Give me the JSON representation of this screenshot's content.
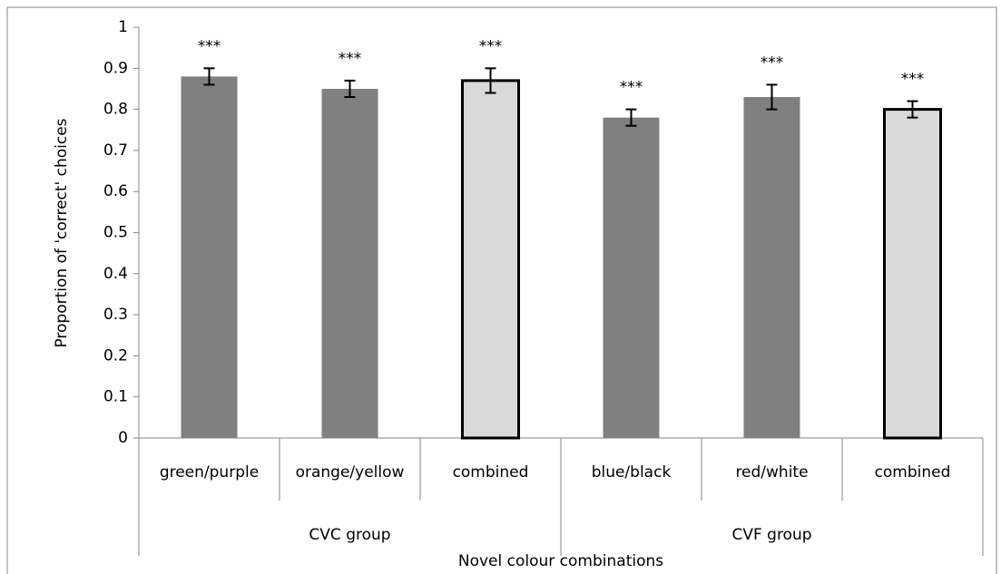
{
  "chart_data": {
    "type": "bar",
    "y_label": "Proportion of 'correct' choices",
    "x_label": "Novel colour combinations",
    "categories": [
      "green/purple",
      "orange/yellow",
      "combined",
      "blue/black",
      "red/white",
      "combined"
    ],
    "groups": [
      {
        "label": "CVC group",
        "span": 3
      },
      {
        "label": "CVF group",
        "span": 3
      }
    ],
    "values": [
      0.88,
      0.85,
      0.87,
      0.78,
      0.83,
      0.8
    ],
    "errors": [
      0.02,
      0.02,
      0.03,
      0.02,
      0.03,
      0.02
    ],
    "annotations": [
      "***",
      "***",
      "***",
      "***",
      "***",
      "***"
    ],
    "colors": [
      "#808080",
      "#808080",
      "#d9d9d9",
      "#808080",
      "#808080",
      "#d9d9d9"
    ],
    "outlined": [
      false,
      false,
      true,
      false,
      false,
      true
    ],
    "edge_color": "#000000",
    "ylim": [
      0,
      1
    ],
    "yticks": [
      0,
      0.1,
      0.2,
      0.3,
      0.4,
      0.5,
      0.6,
      0.7,
      0.8,
      0.9,
      1
    ]
  }
}
